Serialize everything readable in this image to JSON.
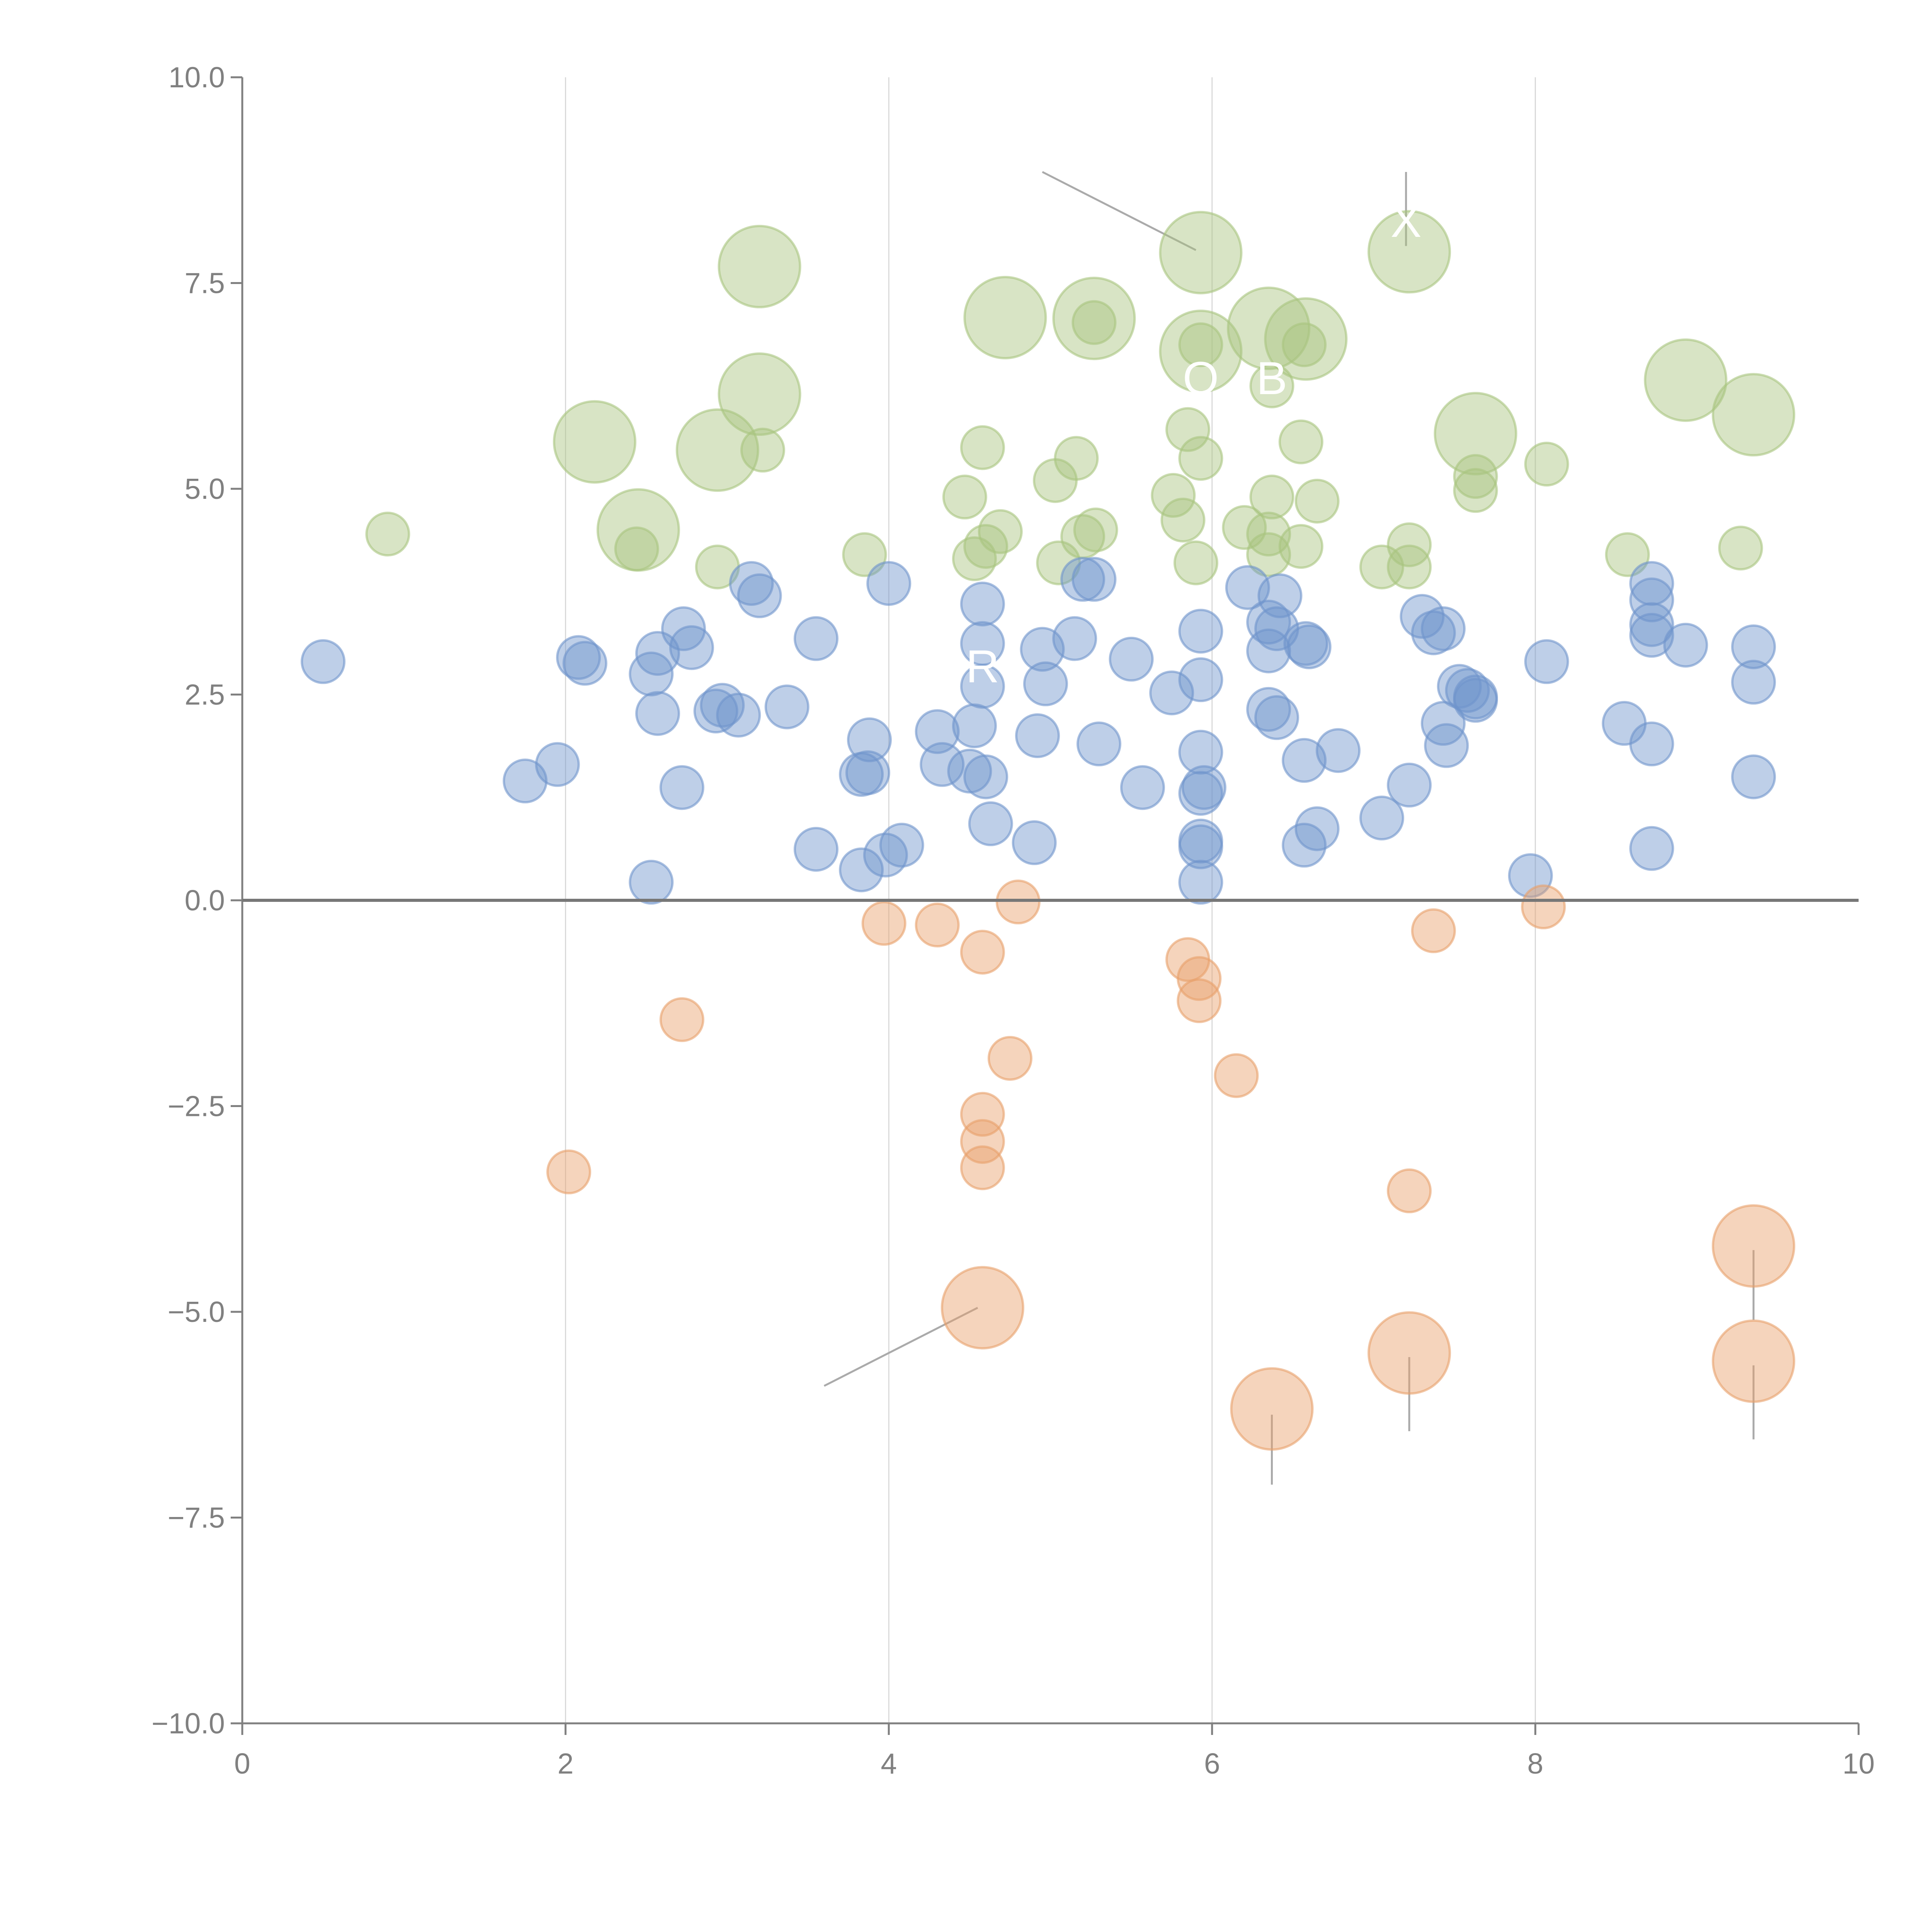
{
  "colors": {
    "green": "#a9c47f",
    "blue": "#6f94cc",
    "orange": "#e8a06a",
    "axis": "#808080",
    "grid": "#d9d9d9",
    "zero_line": "#777777",
    "leader": "#aaaaaa"
  },
  "chart_data": {
    "type": "scatter",
    "title": "",
    "xlabel": "",
    "ylabel": "",
    "xlim": [
      0,
      10
    ],
    "ylim": [
      -10,
      10
    ],
    "x_ticks": [
      0,
      2,
      4,
      6,
      8,
      10
    ],
    "x_tick_labels": [
      "0",
      "2",
      "4",
      "6",
      "8",
      "10"
    ],
    "y_ticks": [
      10,
      7.5,
      5,
      2.5,
      0,
      -2.5,
      -5,
      -7.5,
      -10
    ],
    "y_tick_labels": [
      "10.0",
      "7.5",
      "5.0",
      "2.5",
      "0.0",
      "−2.5",
      "−5.0",
      "−7.5",
      "−10.0"
    ],
    "grid": "vertical",
    "reference_line_y": 0,
    "series": [
      {
        "name": "green",
        "color": "green",
        "points": [
          [
            3.2,
            7.7,
            2
          ],
          [
            2.18,
            5.57,
            2
          ],
          [
            2.94,
            5.47,
            2
          ],
          [
            3.2,
            6.15,
            2
          ],
          [
            2.45,
            4.5,
            2
          ],
          [
            4.72,
            7.08,
            2
          ],
          [
            5.27,
            7.07,
            2
          ],
          [
            5.93,
            7.87,
            2
          ],
          [
            5.93,
            6.67,
            2
          ],
          [
            6.35,
            6.95,
            2
          ],
          [
            6.58,
            6.82,
            2
          ],
          [
            7.22,
            7.88,
            2
          ],
          [
            7.63,
            5.67,
            2
          ],
          [
            8.93,
            6.32,
            2
          ],
          [
            9.35,
            5.9,
            2
          ],
          [
            0.9,
            4.45,
            1
          ],
          [
            2.44,
            4.27,
            1
          ],
          [
            3.22,
            5.47,
            1
          ],
          [
            2.94,
            4.05,
            1
          ],
          [
            3.85,
            4.2,
            1
          ],
          [
            4.58,
            5.5,
            1
          ],
          [
            4.47,
            4.9,
            1
          ],
          [
            4.53,
            4.15,
            1
          ],
          [
            4.6,
            4.3,
            1
          ],
          [
            4.69,
            4.48,
            1
          ],
          [
            5.03,
            5.1,
            1
          ],
          [
            5.16,
            5.37,
            1
          ],
          [
            5.05,
            4.1,
            1
          ],
          [
            5.2,
            4.42,
            1
          ],
          [
            5.28,
            4.5,
            1
          ],
          [
            5.27,
            7.02,
            1
          ],
          [
            5.76,
            4.92,
            1
          ],
          [
            5.82,
            4.62,
            1
          ],
          [
            5.9,
            4.1,
            1
          ],
          [
            5.85,
            5.72,
            1
          ],
          [
            5.93,
            5.37,
            1
          ],
          [
            5.93,
            6.75,
            1
          ],
          [
            6.2,
            4.53,
            1
          ],
          [
            6.37,
            4.9,
            1
          ],
          [
            6.35,
            4.45,
            1
          ],
          [
            6.35,
            4.2,
            1
          ],
          [
            6.37,
            6.25,
            1
          ],
          [
            6.55,
            4.3,
            1
          ],
          [
            6.55,
            5.57,
            1
          ],
          [
            6.57,
            6.75,
            1
          ],
          [
            6.65,
            4.85,
            1
          ],
          [
            7.05,
            4.05,
            1
          ],
          [
            7.22,
            4.32,
            1
          ],
          [
            7.22,
            4.05,
            1
          ],
          [
            7.63,
            5.15,
            1
          ],
          [
            7.63,
            4.98,
            1
          ],
          [
            8.07,
            5.3,
            1
          ],
          [
            8.57,
            4.2,
            1
          ],
          [
            9.27,
            4.28,
            1
          ]
        ]
      },
      {
        "name": "blue",
        "color": "blue",
        "points": [
          [
            0.5,
            2.9,
            1
          ],
          [
            1.75,
            1.45,
            1
          ],
          [
            1.95,
            1.65,
            1
          ],
          [
            2.08,
            2.95,
            1
          ],
          [
            2.12,
            2.88,
            1
          ],
          [
            2.53,
            2.75,
            1
          ],
          [
            2.57,
            3.0,
            1
          ],
          [
            2.57,
            2.27,
            1
          ],
          [
            2.53,
            0.22,
            1
          ],
          [
            2.72,
            1.37,
            1
          ],
          [
            2.73,
            3.3,
            1
          ],
          [
            2.78,
            3.07,
            1
          ],
          [
            2.93,
            2.3,
            1
          ],
          [
            2.97,
            2.37,
            1
          ],
          [
            3.07,
            2.25,
            1
          ],
          [
            3.15,
            3.85,
            1
          ],
          [
            3.2,
            3.7,
            1
          ],
          [
            3.37,
            2.35,
            1
          ],
          [
            3.55,
            0.62,
            1
          ],
          [
            3.55,
            3.18,
            1
          ],
          [
            3.83,
            0.37,
            1
          ],
          [
            3.83,
            1.53,
            1
          ],
          [
            3.87,
            1.55,
            1
          ],
          [
            3.88,
            1.95,
            1
          ],
          [
            3.98,
            0.55,
            1
          ],
          [
            4.0,
            3.85,
            1
          ],
          [
            4.08,
            0.67,
            1
          ],
          [
            4.3,
            2.05,
            1
          ],
          [
            4.33,
            1.65,
            1
          ],
          [
            4.5,
            1.57,
            1
          ],
          [
            4.53,
            2.12,
            1
          ],
          [
            4.58,
            2.6,
            1
          ],
          [
            4.58,
            3.6,
            1
          ],
          [
            4.58,
            3.12,
            1
          ],
          [
            4.6,
            1.5,
            1
          ],
          [
            4.63,
            0.93,
            1
          ],
          [
            4.9,
            0.7,
            1
          ],
          [
            4.92,
            2.0,
            1
          ],
          [
            4.95,
            3.05,
            1
          ],
          [
            4.97,
            2.63,
            1
          ],
          [
            5.15,
            3.18,
            1
          ],
          [
            5.2,
            3.9,
            1
          ],
          [
            5.27,
            3.9,
            1
          ],
          [
            5.3,
            1.9,
            1
          ],
          [
            5.5,
            2.93,
            1
          ],
          [
            5.57,
            1.37,
            1
          ],
          [
            5.75,
            2.52,
            1
          ],
          [
            5.93,
            3.27,
            1
          ],
          [
            5.93,
            2.68,
            1
          ],
          [
            5.93,
            1.8,
            1
          ],
          [
            5.93,
            1.3,
            1
          ],
          [
            5.95,
            1.37,
            1
          ],
          [
            5.93,
            0.72,
            1
          ],
          [
            5.93,
            0.65,
            1
          ],
          [
            5.93,
            0.22,
            1
          ],
          [
            6.22,
            3.8,
            1
          ],
          [
            6.35,
            3.38,
            1
          ],
          [
            6.35,
            3.03,
            1
          ],
          [
            6.35,
            2.32,
            1
          ],
          [
            6.4,
            2.22,
            1
          ],
          [
            6.4,
            3.3,
            1
          ],
          [
            6.42,
            3.7,
            1
          ],
          [
            6.57,
            1.7,
            1
          ],
          [
            6.57,
            0.67,
            1
          ],
          [
            6.58,
            3.12,
            1
          ],
          [
            6.6,
            3.08,
            1
          ],
          [
            6.65,
            0.87,
            1
          ],
          [
            6.78,
            1.82,
            1
          ],
          [
            7.05,
            1.0,
            1
          ],
          [
            7.22,
            1.4,
            1
          ],
          [
            7.3,
            3.45,
            1
          ],
          [
            7.37,
            3.25,
            1
          ],
          [
            7.43,
            3.3,
            1
          ],
          [
            7.43,
            2.15,
            1
          ],
          [
            7.45,
            1.88,
            1
          ],
          [
            7.53,
            2.6,
            1
          ],
          [
            7.58,
            2.55,
            1
          ],
          [
            7.63,
            2.47,
            1
          ],
          [
            7.63,
            2.43,
            1
          ],
          [
            7.97,
            0.3,
            1
          ],
          [
            8.07,
            2.9,
            1
          ],
          [
            8.55,
            2.15,
            1
          ],
          [
            8.72,
            1.9,
            1
          ],
          [
            8.72,
            0.63,
            1
          ],
          [
            8.72,
            3.85,
            1
          ],
          [
            8.72,
            3.65,
            1
          ],
          [
            8.72,
            3.35,
            1
          ],
          [
            8.72,
            3.22,
            1
          ],
          [
            8.93,
            3.1,
            1
          ],
          [
            9.35,
            3.08,
            1
          ],
          [
            9.35,
            2.65,
            1
          ],
          [
            9.35,
            1.5,
            1
          ]
        ]
      },
      {
        "name": "orange",
        "color": "orange",
        "points": [
          [
            4.58,
            -4.95,
            2
          ],
          [
            6.37,
            -6.18,
            2
          ],
          [
            7.22,
            -5.5,
            2
          ],
          [
            9.35,
            -4.2,
            2
          ],
          [
            9.35,
            -5.6,
            2
          ],
          [
            2.02,
            -3.3,
            1
          ],
          [
            2.72,
            -1.45,
            1
          ],
          [
            3.97,
            -0.28,
            1
          ],
          [
            4.3,
            -0.3,
            1
          ],
          [
            4.58,
            -0.63,
            1
          ],
          [
            4.58,
            -2.6,
            1
          ],
          [
            4.58,
            -2.93,
            1
          ],
          [
            4.58,
            -3.25,
            1
          ],
          [
            4.75,
            -1.92,
            1
          ],
          [
            4.8,
            -0.02,
            1
          ],
          [
            5.85,
            -0.72,
            1
          ],
          [
            5.92,
            -0.95,
            1
          ],
          [
            5.92,
            -1.22,
            1
          ],
          [
            6.15,
            -2.13,
            1
          ],
          [
            7.22,
            -3.53,
            1
          ],
          [
            7.37,
            -0.37,
            1
          ],
          [
            8.05,
            -0.08,
            1
          ]
        ]
      }
    ],
    "labels": [
      "X",
      "R",
      "O",
      "B"
    ],
    "label_marks": [
      {
        "text": "X",
        "x": 7.2,
        "y": 8.06
      },
      {
        "text": "R",
        "x": 4.58,
        "y": 2.65
      },
      {
        "text": "O",
        "x": 5.93,
        "y": 6.15
      },
      {
        "text": "B",
        "x": 6.37,
        "y": 6.15
      }
    ],
    "leader_lines": [
      [
        [
          4.95,
          8.85
        ],
        [
          5.9,
          7.9
        ]
      ],
      [
        [
          7.2,
          8.85
        ],
        [
          7.2,
          7.95
        ]
      ],
      [
        [
          3.6,
          -5.9
        ],
        [
          4.55,
          -4.95
        ]
      ],
      [
        [
          6.37,
          -7.1
        ],
        [
          6.37,
          -6.25
        ]
      ],
      [
        [
          7.22,
          -6.45
        ],
        [
          7.22,
          -5.55
        ]
      ],
      [
        [
          9.35,
          -4.25
        ],
        [
          9.35,
          -5.1
        ]
      ],
      [
        [
          9.35,
          -5.65
        ],
        [
          9.35,
          -6.55
        ]
      ]
    ]
  }
}
